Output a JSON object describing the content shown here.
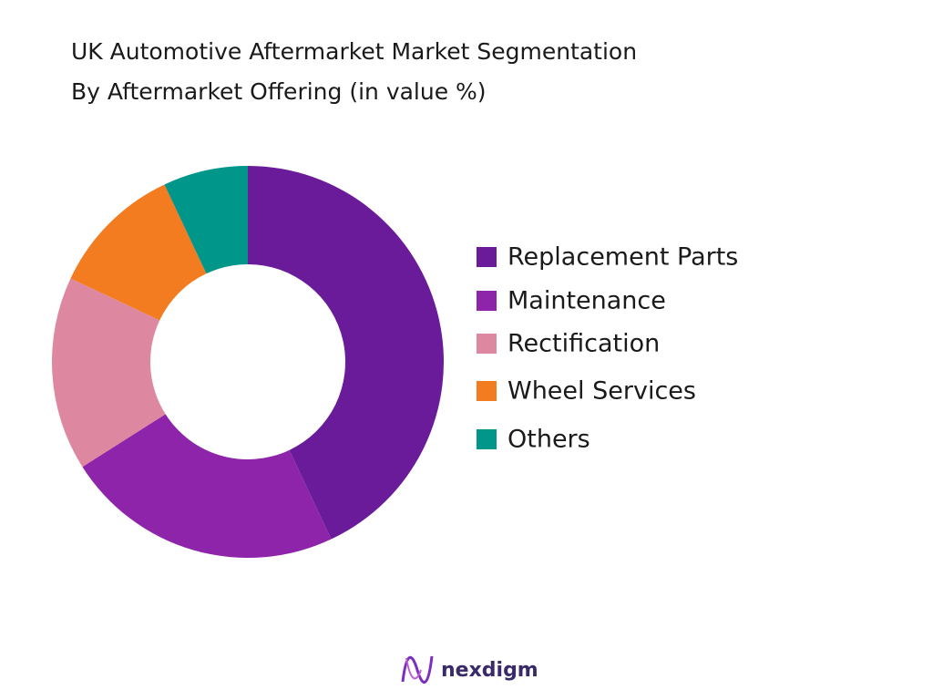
{
  "chart_data": {
    "type": "donut",
    "title": [
      "UK Automotive Aftermarket Market Segmentation",
      "By Aftermarket Offering (in value %)"
    ],
    "categories": [
      "Replacement Parts",
      "Maintenance",
      "Rectification",
      "Wheel Services",
      "Others"
    ],
    "values": [
      43,
      23,
      16,
      11,
      7
    ],
    "colors": [
      "#6a1b9a",
      "#8e24aa",
      "#de87a0",
      "#f47c20",
      "#00968a"
    ],
    "legend": "right"
  },
  "footer": {
    "brand": "nexdigm"
  }
}
